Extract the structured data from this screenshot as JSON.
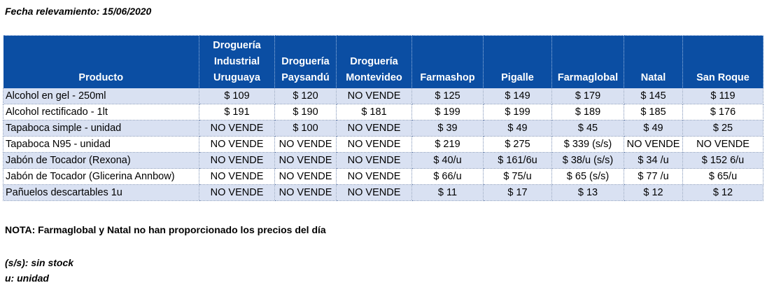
{
  "date_label": "Fecha relevamiento: 15/06/2020",
  "table": {
    "headers": [
      [
        "Producto"
      ],
      [
        "Droguería",
        "Industrial",
        "Uruguaya"
      ],
      [
        "Droguería",
        "Paysandú"
      ],
      [
        "Droguería",
        "Montevideo"
      ],
      [
        "Farmashop"
      ],
      [
        "Pigalle"
      ],
      [
        "Farmaglobal"
      ],
      [
        "Natal"
      ],
      [
        "San Roque"
      ]
    ],
    "rows": [
      [
        "Alcohol en gel  - 250ml",
        "$ 109",
        "$ 120",
        "NO VENDE",
        "$ 125",
        "$ 149",
        "$ 179",
        "$ 145",
        "$ 119"
      ],
      [
        "Alcohol rectificado - 1lt",
        "$ 191",
        "$ 190",
        "$ 181",
        "$ 199",
        "$ 199",
        "$ 189",
        "$ 185",
        "$ 176"
      ],
      [
        "Tapaboca simple - unidad",
        "NO VENDE",
        "$ 100",
        "NO VENDE",
        "$ 39",
        "$ 49",
        "$ 45",
        "$ 49",
        "$ 25"
      ],
      [
        "Tapaboca N95 - unidad",
        "NO VENDE",
        "NO VENDE",
        "NO VENDE",
        "$ 219",
        "$ 275",
        "$ 339 (s/s)",
        "NO VENDE",
        "NO VENDE"
      ],
      [
        "Jabón de Tocador (Rexona)",
        "NO VENDE",
        "NO VENDE",
        "NO VENDE",
        "$ 40/u",
        "$ 161/6u",
        "$ 38/u (s/s)",
        "$ 34 /u",
        "$ 152 6/u"
      ],
      [
        "Jabón de Tocador (Glicerina Annbow)",
        "NO VENDE",
        "NO VENDE",
        "NO VENDE",
        "$ 66/u",
        "$ 75/u",
        "$ 65 (s/s)",
        "$ 77 /u",
        "$ 65/u"
      ],
      [
        "Pañuelos descartables 1u",
        "NO VENDE",
        "NO VENDE",
        "NO VENDE",
        "$ 11",
        "$ 17",
        "$ 13",
        "$ 12",
        "$ 12"
      ]
    ]
  },
  "nota": "NOTA: Farmaglobal y Natal no han proporcionado los precios del día",
  "legend": {
    "ss": "(s/s): sin stock",
    "u": "u: unidad"
  },
  "colors": {
    "header_bg": "#0b4ea3",
    "row_alt_bg": "#d9e1f2"
  }
}
